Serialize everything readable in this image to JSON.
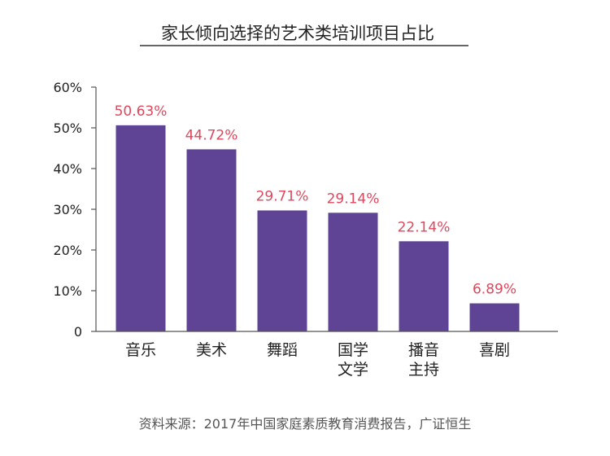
{
  "chart_data": {
    "type": "bar",
    "title": "家长倾向选择的艺术类培训项目占比",
    "categories": [
      [
        "音乐"
      ],
      [
        "美术"
      ],
      [
        "舞蹈"
      ],
      [
        "国学",
        "文学"
      ],
      [
        "播音",
        "主持"
      ],
      [
        "喜剧"
      ]
    ],
    "values": [
      50.63,
      44.72,
      29.71,
      29.14,
      22.14,
      6.89
    ],
    "value_labels": [
      "50.63%",
      "44.72%",
      "29.71%",
      "29.14%",
      "22.14%",
      "6.89%"
    ],
    "ylim": [
      0,
      60
    ],
    "yticks": [
      0,
      10,
      20,
      30,
      40,
      50,
      60
    ],
    "ytick_labels": [
      "0",
      "10%",
      "20%",
      "30%",
      "40%",
      "50%",
      "60%"
    ],
    "xlabel": "",
    "ylabel": "",
    "grid": false,
    "source": "资料来源：2017年中国家庭素质教育消费报告，广证恒生"
  },
  "colors": {
    "bar": "#5f4495",
    "value_label": "#e0465c",
    "axis": "#555555",
    "text": "#222222"
  }
}
